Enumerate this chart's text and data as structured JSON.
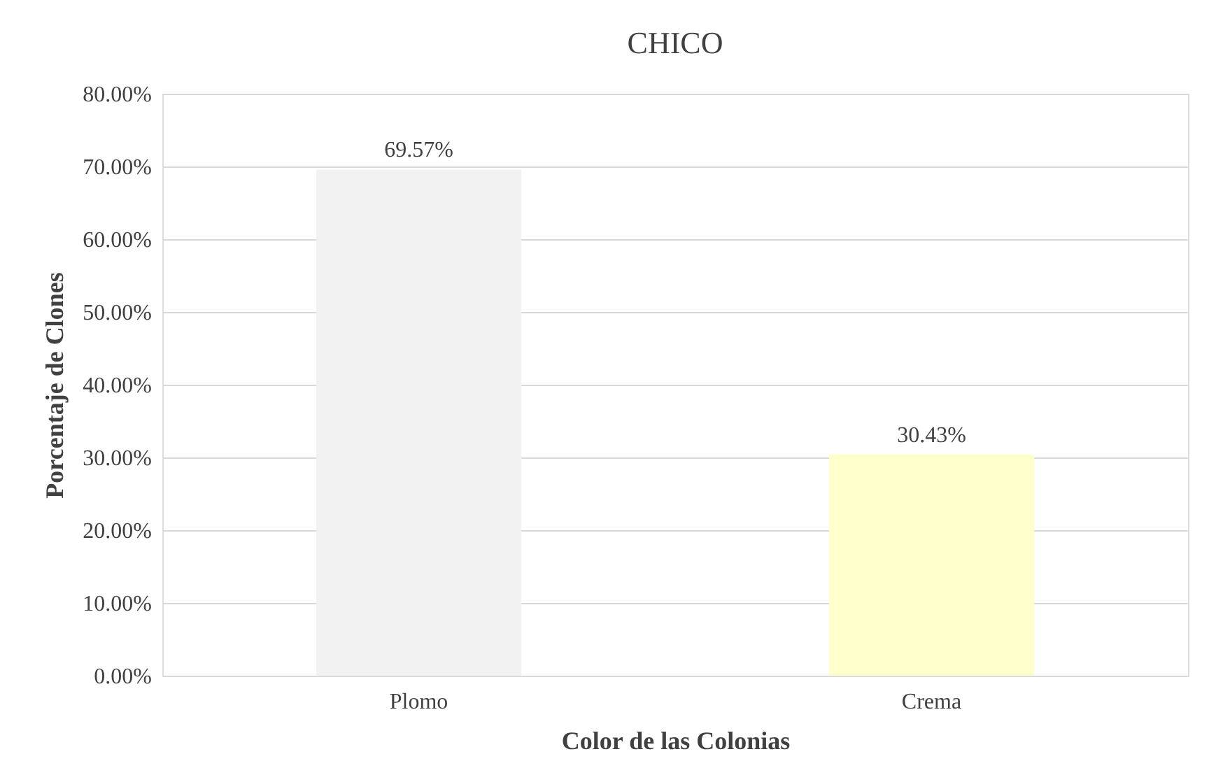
{
  "chart_data": {
    "type": "bar",
    "title": "CHICO",
    "xlabel": "Color de las Colonias",
    "ylabel": "Porcentaje de Clones",
    "categories": [
      "Plomo",
      "Crema"
    ],
    "values": [
      69.57,
      30.43
    ],
    "colors": [
      "#f2f2f2",
      "#ffffcc"
    ],
    "value_labels": [
      "69.57%",
      "30.43%"
    ],
    "ylim": [
      0,
      80
    ],
    "yticks": [
      {
        "value": 0,
        "label": "0.00%"
      },
      {
        "value": 10,
        "label": "10.00%"
      },
      {
        "value": 20,
        "label": "20.00%"
      },
      {
        "value": 30,
        "label": "30.00%"
      },
      {
        "value": 40,
        "label": "40.00%"
      },
      {
        "value": 50,
        "label": "50.00%"
      },
      {
        "value": 60,
        "label": "60.00%"
      },
      {
        "value": 70,
        "label": "70.00%"
      },
      {
        "value": 80,
        "label": "80.00%"
      }
    ],
    "grid": "y"
  }
}
